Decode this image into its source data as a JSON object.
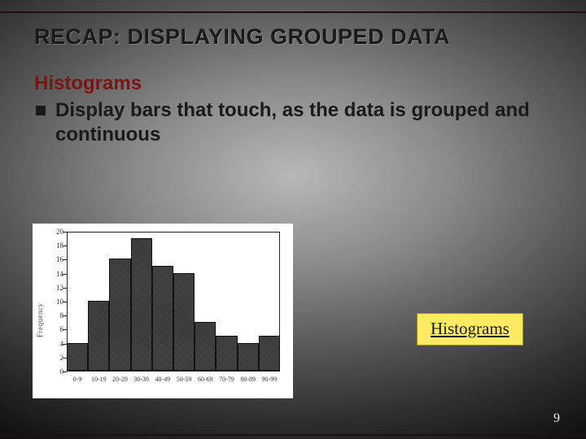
{
  "slide": {
    "title": "RECAP:  DISPLAYING GROUPED DATA",
    "subheading": "Histograms",
    "bullet": "Display bars that touch, as the data is grouped and continuous",
    "page_number": "9"
  },
  "link_box": {
    "label": "Histograms",
    "bg_color": "#fdea64",
    "border_color": "#a08f1e",
    "text_color": "#1a1a1a",
    "underline": true
  },
  "histogram": {
    "type": "histogram",
    "background_color": "#ffffff",
    "bar_color": "#3c3c3c",
    "bar_border_color": "#111111",
    "axis_color": "#222222",
    "ylim": [
      0,
      20
    ],
    "ytick_step": 2,
    "y_axis_label": "Frequency",
    "categories": [
      "0-9",
      "10-19",
      "20-29",
      "30-39",
      "40-49",
      "50-59",
      "60-69",
      "70-79",
      "80-89",
      "90-99"
    ],
    "values": [
      4,
      10,
      16,
      19,
      15,
      14,
      7,
      5,
      4,
      5
    ],
    "bar_count": 10,
    "label_fontsize": 9,
    "tick_fontsize": 9
  },
  "colors": {
    "title_color": "#1a1a1a",
    "subhead_color": "#7a1515",
    "body_color": "#1a1a1a",
    "page_num_color": "#e9e9e9",
    "border_line_color": "#2a0a0a"
  }
}
